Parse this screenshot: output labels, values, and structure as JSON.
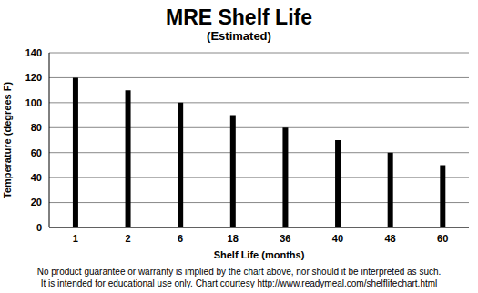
{
  "chart_data": {
    "type": "bar",
    "title": "MRE Shelf Life",
    "subtitle": "(Estimated)",
    "x_label": "Shelf Life (months)",
    "y_label": "Temperature (degrees F)",
    "categories": [
      "1",
      "2",
      "6",
      "18",
      "36",
      "40",
      "48",
      "60"
    ],
    "values": [
      120,
      110,
      100,
      90,
      80,
      70,
      60,
      50
    ],
    "color": "#000000",
    "ylim": [
      0,
      140
    ],
    "yticks": [
      0,
      20,
      40,
      60,
      80,
      100,
      120,
      140
    ],
    "grid": true,
    "annotations": [
      "No product guarantee or warranty is implied by the chart above, nor should it be interpreted as such.",
      "It is intended for educational use only. Chart courtesy http://www.readymeal.com/shelflifechart.html"
    ]
  }
}
